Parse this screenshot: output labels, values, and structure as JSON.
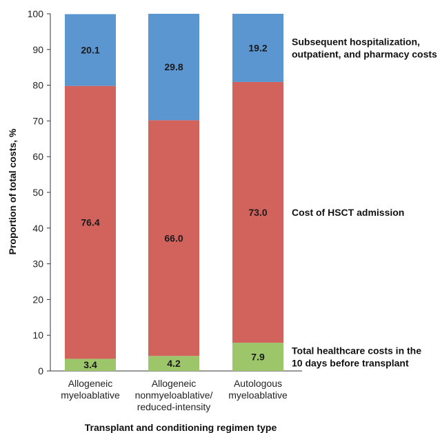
{
  "chart_data": {
    "type": "bar",
    "stacked": true,
    "categories": [
      [
        "Allogeneic",
        "myeloablative"
      ],
      [
        "Allogeneic",
        "nonmyeloablative/",
        "reduced-intensity"
      ],
      [
        "Autologous",
        "myeloablative"
      ]
    ],
    "series": [
      {
        "name": [
          "Total healthcare costs in the",
          "10 days before transplant"
        ],
        "color": "#9dc66b",
        "values": [
          3.4,
          4.2,
          7.9
        ]
      },
      {
        "name": [
          "Cost of HSCT admission"
        ],
        "color": "#d2625c",
        "values": [
          76.4,
          66.0,
          73.0
        ]
      },
      {
        "name": [
          "Subsequent hospitalization,",
          "outpatient, and pharmacy costs"
        ],
        "color": "#5b96d1",
        "values": [
          20.1,
          29.8,
          19.2
        ]
      }
    ],
    "ylabel": "Proportion of total costs, %",
    "xlabel": "Transplant and conditioning regimen type",
    "ylim": [
      0,
      100
    ],
    "yticks": [
      0,
      10,
      20,
      30,
      40,
      50,
      60,
      70,
      80,
      90,
      100
    ],
    "grid": false,
    "legend_position": "right, inline with segments"
  }
}
